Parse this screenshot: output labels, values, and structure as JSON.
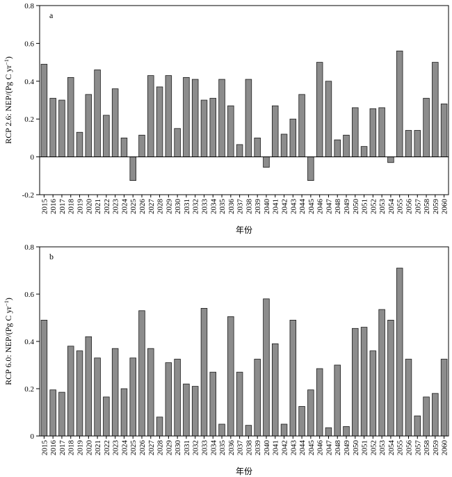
{
  "figure": {
    "xlabel": "年份"
  },
  "chart_data": [
    {
      "type": "bar",
      "panel_label": "a",
      "ylabel": "RCP 2.6: NEP/(Pg C yr",
      "ylabel_sup": "−1",
      "ylabel_end": ")",
      "xlabel": "年份",
      "ylim": [
        -0.2,
        0.8
      ],
      "yticks": [
        "-0.2",
        "0",
        "0.2",
        "0.4",
        "0.6",
        "0.8"
      ],
      "yticks_values": [
        -0.2,
        0,
        0.2,
        0.4,
        0.6,
        0.8
      ],
      "grid": false,
      "categories": [
        "2015",
        "2016",
        "2017",
        "2018",
        "2019",
        "2020",
        "2021",
        "2022",
        "2023",
        "2024",
        "2025",
        "2026",
        "2027",
        "2028",
        "2029",
        "2030",
        "2031",
        "2032",
        "2033",
        "2034",
        "2035",
        "2036",
        "2037",
        "2038",
        "2039",
        "2040",
        "2041",
        "2042",
        "2043",
        "2044",
        "2045",
        "2046",
        "2047",
        "2048",
        "2049",
        "2050",
        "2051",
        "2052",
        "2053",
        "2054",
        "2055",
        "2056",
        "2057",
        "2058",
        "2059",
        "2060"
      ],
      "values": [
        0.49,
        0.31,
        0.3,
        0.42,
        0.13,
        0.33,
        0.46,
        0.22,
        0.36,
        0.1,
        -0.125,
        0.115,
        0.43,
        0.37,
        0.43,
        0.15,
        0.42,
        0.41,
        0.3,
        0.31,
        0.41,
        0.27,
        0.065,
        0.41,
        0.1,
        -0.055,
        0.27,
        0.12,
        0.2,
        0.33,
        -0.125,
        0.5,
        0.4,
        0.09,
        0.115,
        0.26,
        0.055,
        0.255,
        0.26,
        -0.03,
        0.56,
        0.14,
        0.14,
        0.31,
        0.5,
        0.28
      ]
    },
    {
      "type": "bar",
      "panel_label": "b",
      "ylabel": "RCP 6.0: NEP/(Pg C yr",
      "ylabel_sup": "−1",
      "ylabel_end": ")",
      "xlabel": "年份",
      "ylim": [
        0,
        0.8
      ],
      "yticks": [
        "0",
        "0.2",
        "0.4",
        "0.6",
        "0.8"
      ],
      "yticks_values": [
        0,
        0.2,
        0.4,
        0.6,
        0.8
      ],
      "grid": false,
      "categories": [
        "2015",
        "2016",
        "2017",
        "2018",
        "2019",
        "2020",
        "2021",
        "2022",
        "2023",
        "2024",
        "2025",
        "2026",
        "2027",
        "2028",
        "2029",
        "2030",
        "2031",
        "2032",
        "2033",
        "2034",
        "2035",
        "2036",
        "2037",
        "2038",
        "2039",
        "2040",
        "2041",
        "2042",
        "2043",
        "2044",
        "2045",
        "2046",
        "2047",
        "2048",
        "2049",
        "2050",
        "2051",
        "2052",
        "2053",
        "2054",
        "2055",
        "2056",
        "2057",
        "2058",
        "2059",
        "2060"
      ],
      "values": [
        0.49,
        0.195,
        0.185,
        0.38,
        0.36,
        0.42,
        0.33,
        0.165,
        0.37,
        0.2,
        0.33,
        0.53,
        0.37,
        0.08,
        0.31,
        0.325,
        0.22,
        0.21,
        0.54,
        0.27,
        0.05,
        0.505,
        0.27,
        0.045,
        0.325,
        0.58,
        0.39,
        0.05,
        0.49,
        0.125,
        0.195,
        0.285,
        0.035,
        0.3,
        0.04,
        0.455,
        0.46,
        0.36,
        0.535,
        0.49,
        0.71,
        0.325,
        0.085,
        0.165,
        0.18,
        0.325
      ]
    }
  ]
}
